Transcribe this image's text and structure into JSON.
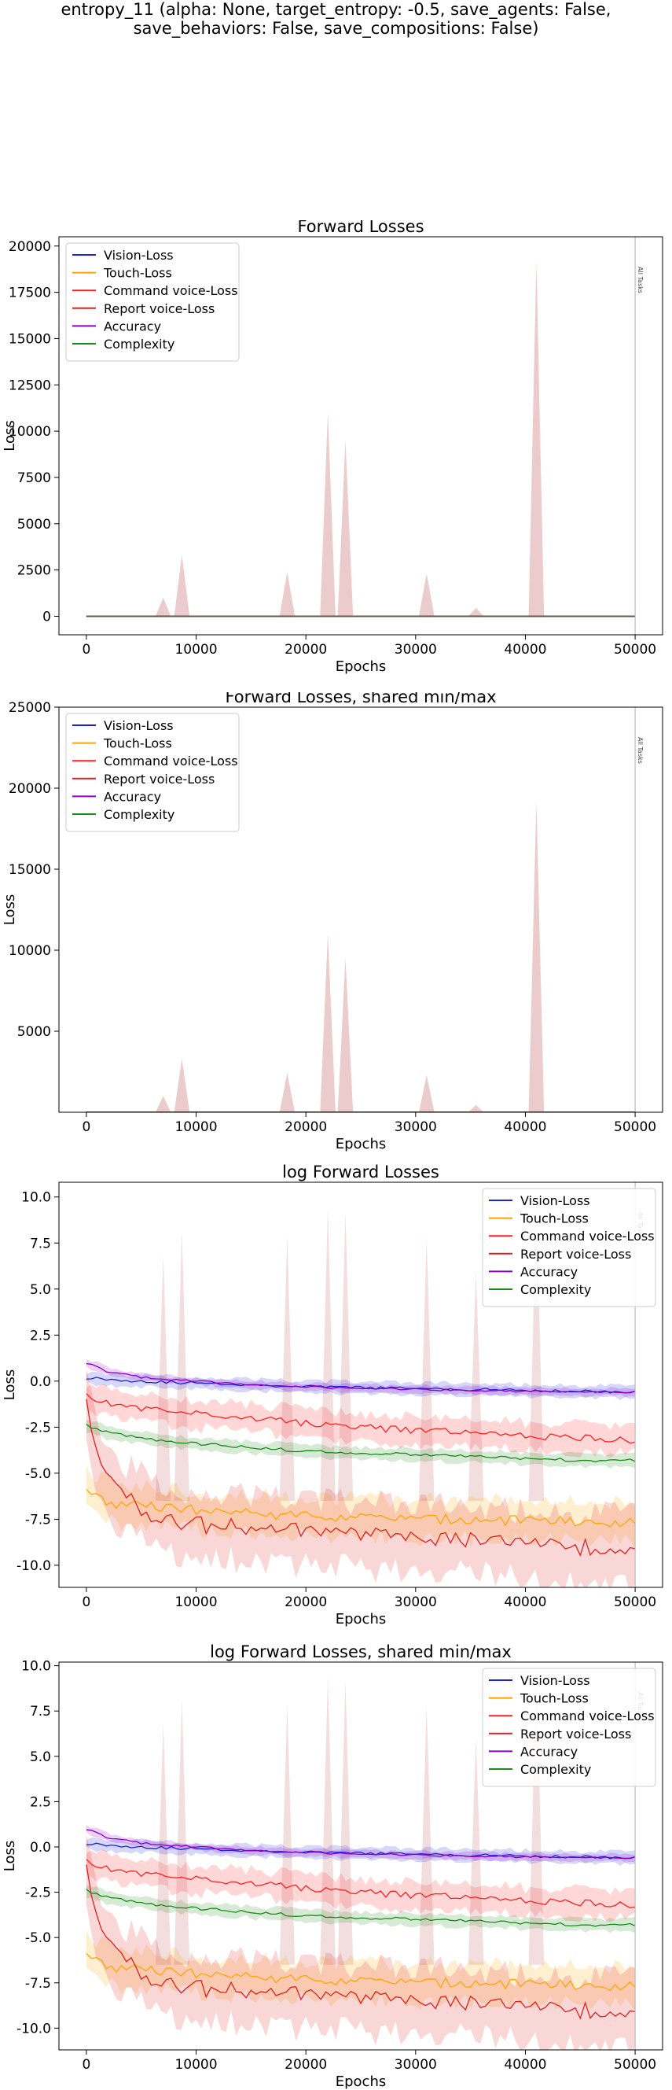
{
  "figure": {
    "suptitle_line1": "entropy_11 (alpha: None, target_entropy: -0.5, save_agents: False,",
    "suptitle_line2": "save_behaviors: False, save_compositions: False)"
  },
  "legend_labels": [
    "Vision-Loss",
    "Touch-Loss",
    "Command voice-Loss",
    "Report voice-Loss",
    "Accuracy",
    "Complexity"
  ],
  "colors": {
    "vision": "#1f1fe0",
    "touch": "#ffa500",
    "command": "#ff2020",
    "report": "#e02020",
    "accuracy": "#8a00c8",
    "complexity": "#1a8a1a",
    "spike_fill": "#e8c2c2",
    "marker": "#b0b0b0"
  },
  "chart_data": [
    {
      "type": "line",
      "title": "Forward Losses",
      "xlabel": "Epochs",
      "ylabel": "Loss",
      "xlim": [
        -2500,
        52500
      ],
      "ylim": [
        -1000,
        20500
      ],
      "xticks": [
        0,
        10000,
        20000,
        30000,
        40000,
        50000
      ],
      "yticks": [
        0,
        2500,
        5000,
        7500,
        10000,
        12500,
        15000,
        17500,
        20000
      ],
      "legend": "upper-left",
      "marker": {
        "x": 50000,
        "text": "All Tasks"
      },
      "log": false,
      "spikes": [
        {
          "x": 7000,
          "peak": 1000
        },
        {
          "x": 8700,
          "peak": 3300
        },
        {
          "x": 18300,
          "peak": 2400
        },
        {
          "x": 22000,
          "peak": 11000
        },
        {
          "x": 23600,
          "peak": 9500
        },
        {
          "x": 31000,
          "peak": 2300
        },
        {
          "x": 35500,
          "peak": 450
        },
        {
          "x": 41000,
          "peak": 19200
        }
      ]
    },
    {
      "type": "line",
      "title": "Forward Losses, shared min/max",
      "xlabel": "Epochs",
      "ylabel": "Loss",
      "xlim": [
        -2500,
        52500
      ],
      "ylim": [
        0,
        25000
      ],
      "xticks": [
        0,
        10000,
        20000,
        30000,
        40000,
        50000
      ],
      "yticks": [
        5000,
        10000,
        15000,
        20000,
        25000
      ],
      "legend": "upper-left",
      "marker": {
        "x": 50000,
        "text": "All Tasks"
      },
      "log": false,
      "spikes": [
        {
          "x": 7000,
          "peak": 1000
        },
        {
          "x": 8700,
          "peak": 3300
        },
        {
          "x": 18300,
          "peak": 2400
        },
        {
          "x": 22000,
          "peak": 11000
        },
        {
          "x": 23600,
          "peak": 9500
        },
        {
          "x": 31000,
          "peak": 2300
        },
        {
          "x": 35500,
          "peak": 450
        },
        {
          "x": 41000,
          "peak": 19200
        }
      ]
    },
    {
      "type": "line",
      "title": "log Forward Losses",
      "xlabel": "Epochs",
      "ylabel": "Loss",
      "xlim": [
        -2500,
        52500
      ],
      "ylim": [
        -11.2,
        10.8
      ],
      "xticks": [
        0,
        10000,
        20000,
        30000,
        40000,
        50000
      ],
      "yticks": [
        -10.0,
        -7.5,
        -5.0,
        -2.5,
        0.0,
        2.5,
        5.0,
        7.5,
        10.0
      ],
      "legend": "upper-right",
      "marker": {
        "x": 50000,
        "text": "All Tasks"
      },
      "log": true,
      "spikes": [
        {
          "x": 7000,
          "peak": 6.8
        },
        {
          "x": 8700,
          "peak": 8.1
        },
        {
          "x": 18300,
          "peak": 7.9
        },
        {
          "x": 22000,
          "peak": 9.4
        },
        {
          "x": 23600,
          "peak": 9.2
        },
        {
          "x": 31000,
          "peak": 7.8
        },
        {
          "x": 35500,
          "peak": 6.0
        },
        {
          "x": 41000,
          "peak": 9.9
        }
      ],
      "series": [
        {
          "name": "Vision-Loss",
          "x": [
            0,
            2000,
            5000,
            10000,
            15000,
            20000,
            25000,
            30000,
            35000,
            40000,
            45000,
            50000
          ],
          "y": [
            0.2,
            0.1,
            0.0,
            -0.1,
            -0.2,
            -0.3,
            -0.35,
            -0.4,
            -0.45,
            -0.5,
            -0.55,
            -0.6
          ],
          "band": 0.3
        },
        {
          "name": "Touch-Loss",
          "x": [
            0,
            2000,
            5000,
            10000,
            15000,
            20000,
            25000,
            30000,
            35000,
            40000,
            45000,
            50000
          ],
          "y": [
            -6.0,
            -6.6,
            -6.8,
            -7.0,
            -7.2,
            -7.3,
            -7.4,
            -7.5,
            -7.5,
            -7.6,
            -7.6,
            -7.7
          ],
          "band": 1.0
        },
        {
          "name": "Command voice-Loss",
          "x": [
            0,
            2000,
            5000,
            10000,
            15000,
            20000,
            25000,
            30000,
            35000,
            40000,
            45000,
            50000
          ],
          "y": [
            -0.8,
            -1.2,
            -1.5,
            -1.8,
            -2.0,
            -2.3,
            -2.5,
            -2.7,
            -2.8,
            -3.0,
            -3.1,
            -3.2
          ],
          "band": 0.7
        },
        {
          "name": "Report voice-Loss",
          "x": [
            0,
            1000,
            2000,
            4000,
            6000,
            8000,
            10000,
            15000,
            20000,
            25000,
            30000,
            35000,
            40000,
            45000,
            50000
          ],
          "y": [
            -1.2,
            -4.0,
            -5.5,
            -6.5,
            -7.2,
            -7.6,
            -7.8,
            -8.0,
            -8.2,
            -8.4,
            -8.5,
            -8.7,
            -8.8,
            -9.0,
            -9.0
          ],
          "band": 1.7
        },
        {
          "name": "Accuracy",
          "x": [
            0,
            2000,
            5000,
            10000,
            15000,
            20000,
            25000,
            30000,
            35000,
            40000,
            45000,
            50000
          ],
          "y": [
            1.0,
            0.5,
            0.2,
            0.0,
            -0.2,
            -0.3,
            -0.4,
            -0.45,
            -0.5,
            -0.55,
            -0.6,
            -0.6
          ],
          "band": 0.2
        },
        {
          "name": "Complexity",
          "x": [
            0,
            2000,
            5000,
            10000,
            15000,
            20000,
            25000,
            30000,
            35000,
            40000,
            45000,
            50000
          ],
          "y": [
            -2.4,
            -2.8,
            -3.1,
            -3.4,
            -3.6,
            -3.8,
            -3.9,
            -4.0,
            -4.1,
            -4.2,
            -4.3,
            -4.3
          ],
          "band": 0.3
        }
      ]
    },
    {
      "type": "line",
      "title": "log Forward Losses, shared min/max",
      "xlabel": "Epochs",
      "ylabel": "Loss",
      "xlim": [
        -2500,
        52500
      ],
      "ylim": [
        -11.2,
        10.2
      ],
      "xticks": [
        0,
        10000,
        20000,
        30000,
        40000,
        50000
      ],
      "yticks": [
        -10.0,
        -7.5,
        -5.0,
        -2.5,
        0.0,
        2.5,
        5.0,
        7.5,
        10.0
      ],
      "legend": "upper-right",
      "marker": {
        "x": 50000,
        "text": "All Tasks"
      },
      "log": true,
      "spikes": [
        {
          "x": 7000,
          "peak": 6.8
        },
        {
          "x": 8700,
          "peak": 8.1
        },
        {
          "x": 18300,
          "peak": 7.9
        },
        {
          "x": 22000,
          "peak": 9.4
        },
        {
          "x": 23600,
          "peak": 9.2
        },
        {
          "x": 31000,
          "peak": 7.8
        },
        {
          "x": 35500,
          "peak": 6.0
        },
        {
          "x": 41000,
          "peak": 9.9
        }
      ],
      "series": [
        {
          "name": "Vision-Loss",
          "x": [
            0,
            2000,
            5000,
            10000,
            15000,
            20000,
            25000,
            30000,
            35000,
            40000,
            45000,
            50000
          ],
          "y": [
            0.2,
            0.1,
            0.0,
            -0.1,
            -0.2,
            -0.3,
            -0.35,
            -0.4,
            -0.45,
            -0.5,
            -0.55,
            -0.6
          ],
          "band": 0.3
        },
        {
          "name": "Touch-Loss",
          "x": [
            0,
            2000,
            5000,
            10000,
            15000,
            20000,
            25000,
            30000,
            35000,
            40000,
            45000,
            50000
          ],
          "y": [
            -6.0,
            -6.6,
            -6.8,
            -7.0,
            -7.2,
            -7.3,
            -7.4,
            -7.5,
            -7.5,
            -7.6,
            -7.6,
            -7.7
          ],
          "band": 1.0
        },
        {
          "name": "Command voice-Loss",
          "x": [
            0,
            2000,
            5000,
            10000,
            15000,
            20000,
            25000,
            30000,
            35000,
            40000,
            45000,
            50000
          ],
          "y": [
            -0.8,
            -1.2,
            -1.5,
            -1.8,
            -2.0,
            -2.3,
            -2.5,
            -2.7,
            -2.8,
            -3.0,
            -3.1,
            -3.2
          ],
          "band": 0.7
        },
        {
          "name": "Report voice-Loss",
          "x": [
            0,
            1000,
            2000,
            4000,
            6000,
            8000,
            10000,
            15000,
            20000,
            25000,
            30000,
            35000,
            40000,
            45000,
            50000
          ],
          "y": [
            -1.2,
            -4.0,
            -5.5,
            -6.5,
            -7.2,
            -7.6,
            -7.8,
            -8.0,
            -8.2,
            -8.4,
            -8.5,
            -8.7,
            -8.8,
            -9.0,
            -9.0
          ],
          "band": 1.7
        },
        {
          "name": "Accuracy",
          "x": [
            0,
            2000,
            5000,
            10000,
            15000,
            20000,
            25000,
            30000,
            35000,
            40000,
            45000,
            50000
          ],
          "y": [
            1.0,
            0.5,
            0.2,
            0.0,
            -0.2,
            -0.3,
            -0.4,
            -0.45,
            -0.5,
            -0.55,
            -0.6,
            -0.6
          ],
          "band": 0.2
        },
        {
          "name": "Complexity",
          "x": [
            0,
            2000,
            5000,
            10000,
            15000,
            20000,
            25000,
            30000,
            35000,
            40000,
            45000,
            50000
          ],
          "y": [
            -2.4,
            -2.8,
            -3.1,
            -3.4,
            -3.6,
            -3.8,
            -3.9,
            -4.0,
            -4.1,
            -4.2,
            -4.3,
            -4.3
          ],
          "band": 0.3
        }
      ]
    }
  ]
}
